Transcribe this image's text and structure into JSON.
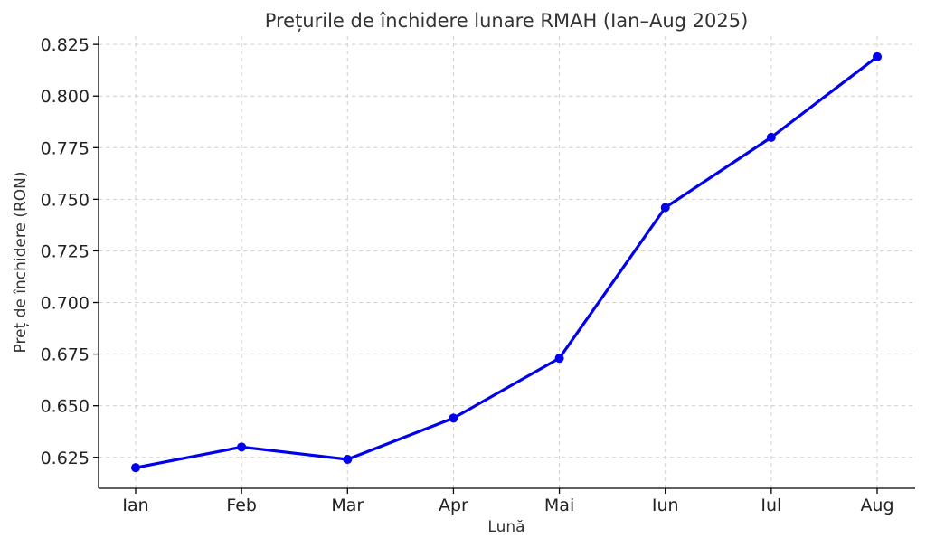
{
  "chart_data": {
    "type": "line",
    "title": "Prețurile de închidere lunare RMAH (Ian–Aug 2025)",
    "xlabel": "Lună",
    "ylabel": "Preț de închidere (RON)",
    "categories": [
      "Ian",
      "Feb",
      "Mar",
      "Apr",
      "Mai",
      "Iun",
      "Iul",
      "Aug"
    ],
    "series": [
      {
        "values": [
          0.62,
          0.63,
          0.624,
          0.644,
          0.673,
          0.746,
          0.78,
          0.819
        ]
      }
    ],
    "ylim": [
      0.61,
      0.829
    ],
    "yticks": [
      "0.625",
      "0.650",
      "0.675",
      "0.700",
      "0.725",
      "0.750",
      "0.775",
      "0.800",
      "0.825"
    ],
    "grid": true,
    "line_color": "#0000ee"
  }
}
